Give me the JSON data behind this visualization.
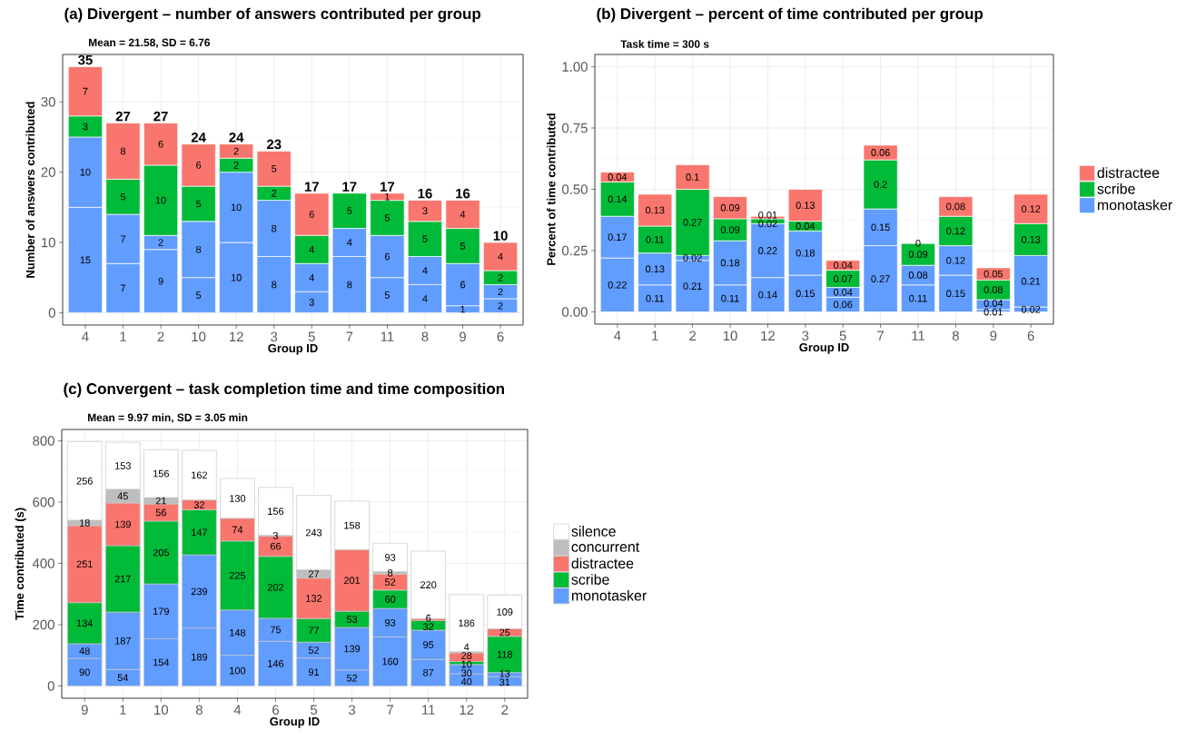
{
  "chart_data": [
    {
      "type": "bar",
      "title": "(a) Divergent – number of answers contributed per group",
      "subtitle": "Mean = 21.58, SD = 6.76",
      "xlabel": "Group ID",
      "ylabel": "Number of answers contributed",
      "categories": [
        "4",
        "1",
        "2",
        "10",
        "12",
        "3",
        "5",
        "7",
        "11",
        "8",
        "9",
        "6"
      ],
      "series": [
        {
          "color": "#619cff",
          "values": [
            15,
            7,
            9,
            5,
            10,
            8,
            3,
            8,
            5,
            4,
            1,
            2
          ]
        },
        {
          "color": "#619cff",
          "values": [
            10,
            7,
            2,
            8,
            10,
            8,
            4,
            4,
            6,
            4,
            6,
            2
          ]
        },
        {
          "color": "#00ba38",
          "values": [
            3,
            5,
            10,
            5,
            2,
            2,
            4,
            5,
            5,
            5,
            5,
            2
          ]
        },
        {
          "color": "#f8766d",
          "values": [
            7,
            8,
            6,
            6,
            2,
            5,
            6,
            null,
            1,
            3,
            4,
            4
          ]
        }
      ],
      "stacked": true,
      "data_labels": true,
      "totals": [
        "35",
        "27",
        "27",
        "24",
        "24",
        "23",
        "17",
        "17",
        "17",
        "16",
        "16",
        "10"
      ],
      "ylim": [
        -1.75,
        36.75
      ],
      "yticks": [
        0,
        10,
        20,
        30
      ],
      "grid": true,
      "legend": false
    },
    {
      "type": "bar",
      "title": "(b) Divergent – percent of time contributed per group",
      "subtitle": "Task time = 300 s",
      "xlabel": "Group ID",
      "ylabel": "Percent of time contributed",
      "categories": [
        "4",
        "1",
        "2",
        "10",
        "12",
        "3",
        "5",
        "7",
        "11",
        "8",
        "9",
        "6"
      ],
      "series": [
        {
          "name": "monotasker",
          "color": "#619cff",
          "values": [
            0.22,
            0.11,
            0.21,
            0.11,
            0.14,
            0.15,
            0.06,
            0.27,
            0.11,
            0.15,
            0.01,
            0.02
          ]
        },
        {
          "color": "#619cff",
          "values": [
            0.17,
            0.13,
            0.02,
            0.18,
            0.22,
            0.18,
            0.04,
            0.15,
            0.08,
            0.12,
            0.04,
            0.21
          ]
        },
        {
          "name": "scribe",
          "color": "#00ba38",
          "values": [
            0.14,
            0.11,
            0.27,
            0.09,
            0.02,
            0.04,
            0.07,
            0.2,
            0.09,
            0.12,
            0.08,
            0.13
          ]
        },
        {
          "name": "distractee",
          "color": "#f8766d",
          "values": [
            0.04,
            0.13,
            0.1,
            0.09,
            0.01,
            0.13,
            0.04,
            0.06,
            0,
            0.08,
            0.05,
            0.12
          ]
        }
      ],
      "stacked": true,
      "data_labels": true,
      "ylim": [
        -0.05,
        1.05
      ],
      "yticks": [
        {
          "value": 0,
          "label": "0.00"
        },
        {
          "value": 0.25,
          "label": "0.25"
        },
        {
          "value": 0.5,
          "label": "0.50"
        },
        {
          "value": 0.75,
          "label": "0.75"
        },
        {
          "value": 1,
          "label": "1.00"
        }
      ],
      "grid": true,
      "legend": "right"
    },
    {
      "type": "bar",
      "title": "(c) Convergent – task completion time and time composition",
      "subtitle": "Mean = 9.97 min, SD = 3.05 min",
      "xlabel": "Group ID",
      "ylabel": "Time contributed (s)",
      "categories": [
        "9",
        "1",
        "10",
        "8",
        "4",
        "6",
        "5",
        "3",
        "7",
        "11",
        "12",
        "2"
      ],
      "series": [
        {
          "name": "monotasker",
          "color": "#619cff",
          "values": [
            90,
            54,
            154,
            189,
            100,
            146,
            91,
            52,
            160,
            87,
            40,
            31
          ]
        },
        {
          "color": "#619cff",
          "values": [
            48,
            187,
            179,
            239,
            148,
            75,
            52,
            139,
            93,
            95,
            30,
            13
          ]
        },
        {
          "name": "scribe",
          "color": "#00ba38",
          "values": [
            134,
            217,
            205,
            147,
            225,
            202,
            77,
            53,
            60,
            32,
            10,
            118
          ]
        },
        {
          "name": "distractee",
          "color": "#f8766d",
          "values": [
            251,
            139,
            56,
            32,
            74,
            66,
            132,
            201,
            52,
            6,
            28,
            25
          ]
        },
        {
          "name": "concurrent",
          "color": "#bebebe",
          "values": [
            18,
            45,
            21,
            null,
            null,
            3,
            27,
            null,
            8,
            null,
            4,
            null
          ]
        },
        {
          "name": "silence",
          "color": "#ffffff",
          "values": [
            256,
            153,
            156,
            162,
            130,
            156,
            243,
            158,
            93,
            220,
            186,
            109
          ]
        }
      ],
      "stacked": true,
      "data_labels": true,
      "ylim": [
        -40,
        837
      ],
      "yticks": [
        0,
        200,
        400,
        600,
        800
      ],
      "grid": true,
      "legend": "right"
    }
  ]
}
